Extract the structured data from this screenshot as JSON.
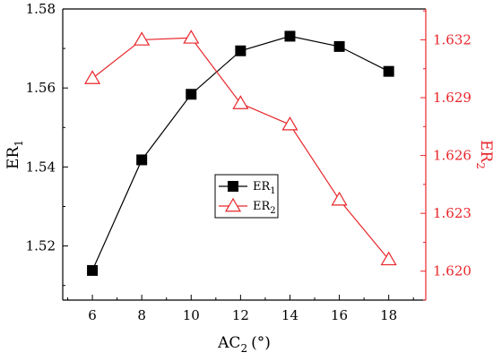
{
  "chart_data": {
    "type": "line",
    "x": [
      6,
      8,
      10,
      12,
      14,
      16,
      18
    ],
    "xlabel": {
      "base": "AC",
      "sub": "2",
      "tail": "(°)"
    },
    "xlim": [
      4.8,
      19.5
    ],
    "xticks": [
      "6",
      "8",
      "10",
      "12",
      "14",
      "16",
      "18"
    ],
    "y_left": {
      "label": {
        "base": "ER",
        "sub": "1"
      },
      "lim": [
        1.5063,
        1.58
      ],
      "ticks": [
        "1.52",
        "1.54",
        "1.56",
        "1.58"
      ],
      "tick_values": [
        1.52,
        1.54,
        1.56,
        1.58
      ],
      "color": "#000000"
    },
    "y_right": {
      "label": {
        "base": "ER",
        "sub": "2"
      },
      "lim": [
        1.6185,
        1.6336
      ],
      "ticks": [
        "1.620",
        "1.623",
        "1.626",
        "1.629",
        "1.632"
      ],
      "tick_values": [
        1.62,
        1.623,
        1.626,
        1.629,
        1.632
      ],
      "color": "#e8262b"
    },
    "series": [
      {
        "name": {
          "base": "ER",
          "sub": "1"
        },
        "axis": "left",
        "marker": "filled-square",
        "color": "#000000",
        "values": [
          1.5138,
          1.5418,
          1.5584,
          1.5694,
          1.5731,
          1.5705,
          1.5642
        ]
      },
      {
        "name": {
          "base": "ER",
          "sub": "2"
        },
        "axis": "right",
        "marker": "open-triangle",
        "color": "#e8262b",
        "values": [
          1.63,
          1.632,
          1.6321,
          1.6287,
          1.6276,
          1.6237,
          1.6206
        ]
      }
    ],
    "legend_position": "center",
    "grid": false
  }
}
